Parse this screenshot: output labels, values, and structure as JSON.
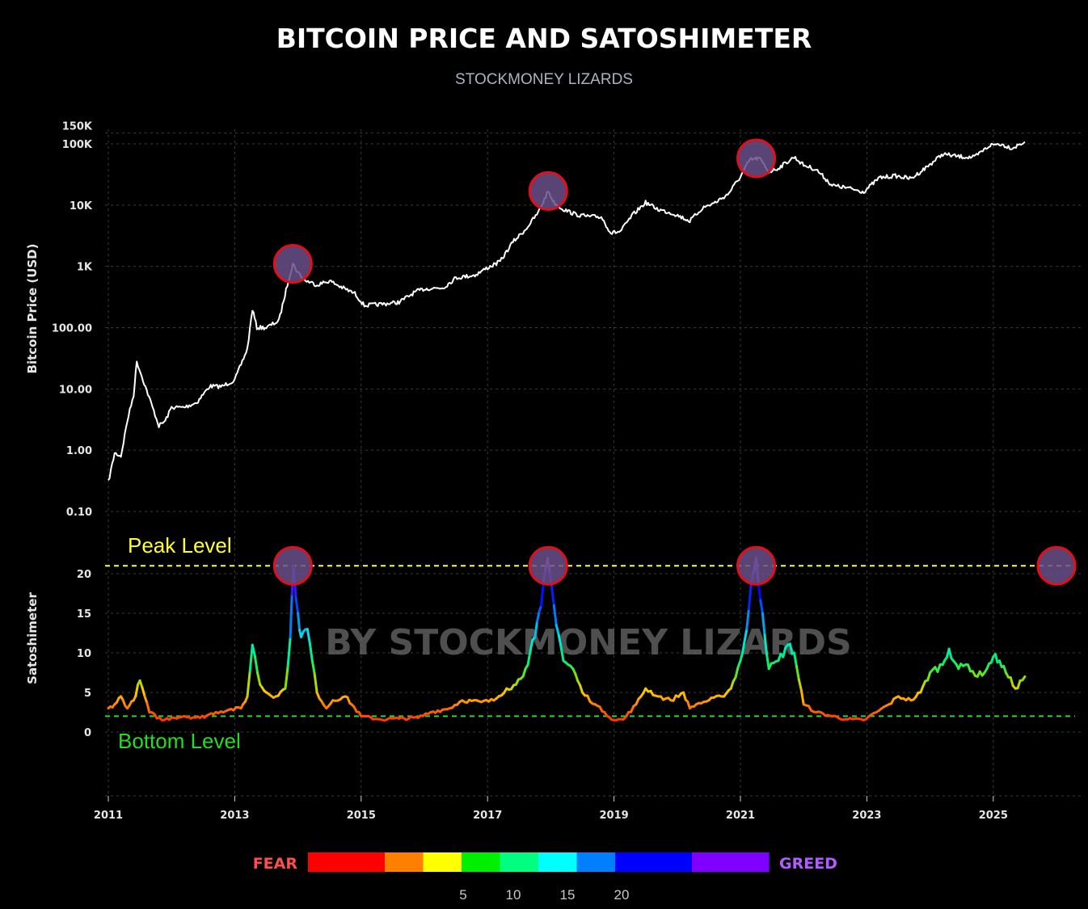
{
  "title": "BITCOIN PRICE AND SATOSHIMETER",
  "subtitle": "STOCKMONEY LIZARDS",
  "watermark": "BY STOCKMONEY LIZARDS",
  "colors": {
    "background": "#000000",
    "price_line": "#ffffff",
    "peak_line": "#ffff33",
    "bottom_line": "#22dd22",
    "marker_fill": "#6a4f8a",
    "marker_stroke": "#e0101a",
    "fear": "#ff4d4d",
    "greed": "#b05cff"
  },
  "chart_data": [
    {
      "type": "line",
      "ylabel": "Bitcoin Price (USD)",
      "yscale": "log",
      "ylim": [
        0.07,
        150000
      ],
      "xlim": [
        2011.0,
        2026.3
      ],
      "y_ticks": [
        {
          "value": 150000,
          "label": "150K"
        },
        {
          "value": 100000,
          "label": "100K"
        },
        {
          "value": 10000,
          "label": "10K"
        },
        {
          "value": 1000,
          "label": "1K"
        },
        {
          "value": 100,
          "label": "100.00"
        },
        {
          "value": 10,
          "label": "10.00"
        },
        {
          "value": 1,
          "label": "1.00"
        },
        {
          "value": 0.1,
          "label": "0.10"
        }
      ],
      "x": [
        2011.0,
        2011.1,
        2011.2,
        2011.3,
        2011.4,
        2011.45,
        2011.55,
        2011.7,
        2011.8,
        2011.9,
        2012.0,
        2012.2,
        2012.4,
        2012.6,
        2012.8,
        2013.0,
        2013.2,
        2013.28,
        2013.35,
        2013.5,
        2013.7,
        2013.85,
        2013.92,
        2014.0,
        2014.1,
        2014.3,
        2014.5,
        2014.7,
        2014.9,
        2015.05,
        2015.3,
        2015.6,
        2015.85,
        2016.0,
        2016.3,
        2016.5,
        2016.8,
        2017.0,
        2017.2,
        2017.4,
        2017.6,
        2017.8,
        2017.96,
        2018.05,
        2018.2,
        2018.4,
        2018.6,
        2018.8,
        2018.95,
        2019.1,
        2019.3,
        2019.5,
        2019.7,
        2019.95,
        2020.2,
        2020.4,
        2020.6,
        2020.8,
        2021.0,
        2021.15,
        2021.3,
        2021.45,
        2021.6,
        2021.85,
        2022.0,
        2022.2,
        2022.45,
        2022.7,
        2022.95,
        2023.2,
        2023.45,
        2023.7,
        2023.95,
        2024.2,
        2024.45,
        2024.7,
        2024.95,
        2025.1,
        2025.3,
        2025.5
      ],
      "y": [
        0.3,
        0.9,
        0.8,
        3,
        8,
        28,
        14,
        5,
        2.5,
        3,
        5,
        5,
        6,
        11,
        11,
        14,
        45,
        200,
        100,
        100,
        130,
        600,
        1100,
        800,
        600,
        500,
        580,
        450,
        360,
        230,
        240,
        260,
        380,
        430,
        450,
        650,
        720,
        950,
        1200,
        2500,
        4000,
        7500,
        17000,
        11000,
        8500,
        7000,
        6500,
        6400,
        3500,
        3700,
        7000,
        11000,
        8500,
        7200,
        5500,
        9000,
        11000,
        15000,
        29000,
        55000,
        58000,
        35000,
        40000,
        61000,
        45000,
        38000,
        21000,
        19000,
        16500,
        28000,
        30000,
        27000,
        42000,
        68000,
        62000,
        60000,
        95000,
        100000,
        85000,
        108000
      ]
    },
    {
      "type": "line",
      "ylabel": "Satoshimeter",
      "ylim": [
        -8,
        23
      ],
      "xlim": [
        2011.0,
        2026.3
      ],
      "y_ticks": [
        0,
        5,
        10,
        15,
        20
      ],
      "x_ticks": [
        2011,
        2013,
        2015,
        2017,
        2019,
        2021,
        2023,
        2025
      ],
      "x": [
        2011.0,
        2011.1,
        2011.2,
        2011.3,
        2011.4,
        2011.5,
        2011.65,
        2011.85,
        2012.0,
        2012.2,
        2012.45,
        2012.7,
        2012.9,
        2013.1,
        2013.2,
        2013.28,
        2013.4,
        2013.5,
        2013.65,
        2013.8,
        2013.88,
        2013.93,
        2014.0,
        2014.05,
        2014.15,
        2014.3,
        2014.45,
        2014.55,
        2014.75,
        2015.0,
        2015.3,
        2015.6,
        2015.9,
        2016.1,
        2016.4,
        2016.6,
        2016.9,
        2017.1,
        2017.3,
        2017.45,
        2017.6,
        2017.75,
        2017.85,
        2017.95,
        2018.05,
        2018.2,
        2018.35,
        2018.5,
        2018.7,
        2018.85,
        2019.0,
        2019.15,
        2019.35,
        2019.5,
        2019.7,
        2019.9,
        2020.1,
        2020.2,
        2020.3,
        2020.5,
        2020.7,
        2020.85,
        2021.0,
        2021.1,
        2021.2,
        2021.25,
        2021.35,
        2021.45,
        2021.6,
        2021.75,
        2021.85,
        2022.0,
        2022.2,
        2022.45,
        2022.7,
        2022.95,
        2023.15,
        2023.35,
        2023.5,
        2023.7,
        2023.85,
        2024.0,
        2024.2,
        2024.3,
        2024.45,
        2024.6,
        2024.75,
        2024.9,
        2025.0,
        2025.1,
        2025.2,
        2025.35,
        2025.5
      ],
      "y": [
        3,
        3.5,
        4.5,
        3,
        4,
        6.5,
        2.5,
        1.5,
        1.8,
        2,
        1.8,
        2.5,
        2.8,
        3,
        4.5,
        11,
        6,
        5,
        4.5,
        5.5,
        12,
        21,
        15,
        12,
        13,
        5,
        3,
        4,
        4.5,
        2,
        1.6,
        1.7,
        1.8,
        2.5,
        3,
        4,
        3.8,
        4,
        5.5,
        6,
        8,
        12,
        16,
        22,
        16,
        9,
        8,
        5,
        3.5,
        2.5,
        1.5,
        1.6,
        3.5,
        5.5,
        4.5,
        4,
        5,
        3,
        3.5,
        4,
        4.5,
        5.5,
        9,
        13,
        20,
        22,
        15,
        8,
        9,
        11,
        10,
        3.5,
        2.5,
        2,
        1.6,
        1.5,
        2.5,
        3.5,
        4.5,
        4,
        5,
        7.5,
        8.5,
        10.5,
        8,
        8.5,
        7,
        8,
        9.5,
        9,
        7.5,
        5.5,
        7
      ]
    }
  ],
  "levels": {
    "peak": {
      "label": "Peak Level",
      "value": 21
    },
    "bottom": {
      "label": "Bottom Level",
      "value": 2
    }
  },
  "legend": {
    "left_label": "FEAR",
    "right_label": "GREED",
    "colors": [
      "#ff0000",
      "#ff0000",
      "#ff8000",
      "#ffff00",
      "#00ee00",
      "#00ff80",
      "#00ffff",
      "#0080ff",
      "#0000ff",
      "#0000ff",
      "#8000ff",
      "#8000ff"
    ],
    "tick_labels": [
      "5",
      "10",
      "15",
      "20"
    ]
  }
}
